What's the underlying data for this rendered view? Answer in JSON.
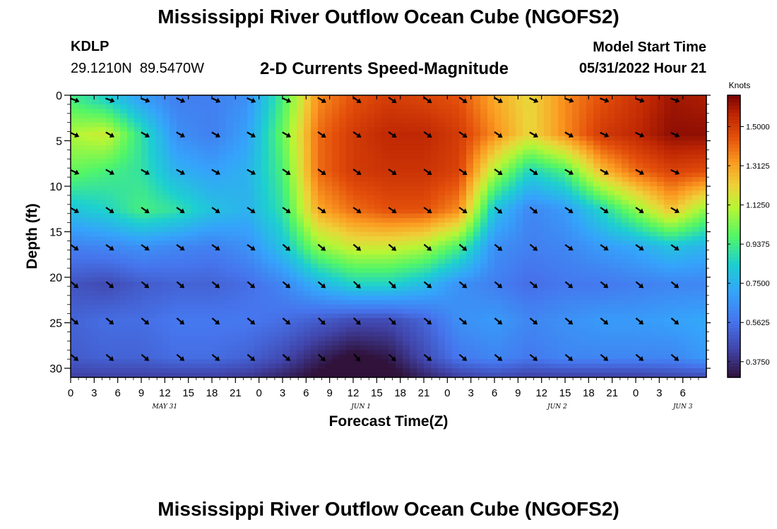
{
  "header": {
    "title": "Mississippi River Outflow Ocean Cube (NGOFS2)",
    "station_id": "KDLP",
    "station_coords": "29.1210N  89.5470W",
    "subtitle": "2-D Currents Speed-Magnitude",
    "model_start_label": "Model Start Time",
    "model_start_value": "05/31/2022 Hour 21"
  },
  "footer": {
    "title": "Mississippi River Outflow Ocean Cube (NGOFS2)"
  },
  "chart_data": {
    "type": "heatmap",
    "title": "2-D Currents Speed-Magnitude",
    "xlabel": "Forecast Time(Z)",
    "ylabel": "Depth (ft)",
    "x_range_hours": [
      0,
      81
    ],
    "y_range_ft": [
      0,
      31
    ],
    "y_inverted": true,
    "x_tick_labels": [
      "0",
      "3",
      "6",
      "9",
      "12",
      "15",
      "18",
      "21",
      "0",
      "3",
      "6",
      "9",
      "12",
      "15",
      "18",
      "21",
      "0",
      "3",
      "6",
      "9",
      "12",
      "15",
      "18",
      "21",
      "0",
      "3",
      "6"
    ],
    "y_ticks": [
      0,
      5,
      10,
      15,
      20,
      25,
      30
    ],
    "date_labels": [
      {
        "label": "MAY 31",
        "hour": 12
      },
      {
        "label": "JUN 1",
        "hour": 37
      },
      {
        "label": "JUN 2",
        "hour": 62
      },
      {
        "label": "JUN 3",
        "hour": 78
      }
    ],
    "colorbar": {
      "title": "Knots",
      "ticks": [
        1.5,
        1.3125,
        1.125,
        0.9375,
        0.75,
        0.5625,
        0.375
      ],
      "tick_labels": [
        "1.5000",
        "1.3125",
        "1.1250",
        "0.9375",
        "0.7500",
        "0.5625",
        "0.3750"
      ],
      "range": [
        0.3,
        1.65
      ]
    },
    "grid": false,
    "legend": "right",
    "depths_ft": [
      0.5,
      4.3,
      8.4,
      12.6,
      16.7,
      20.8,
      24.8,
      28.8,
      31.0
    ],
    "times_h": [
      0,
      4.5,
      9,
      13.5,
      18,
      22.5,
      27,
      31.5,
      36,
      40.5,
      45,
      49.5,
      54,
      58.5,
      63,
      67.5,
      72,
      76.5,
      81
    ],
    "speed_knots": [
      [
        0.95,
        0.85,
        0.7,
        0.6,
        0.6,
        0.65,
        0.95,
        1.35,
        1.45,
        1.5,
        1.48,
        1.45,
        1.3,
        1.2,
        1.35,
        1.45,
        1.52,
        1.6,
        1.58
      ],
      [
        1.1,
        1.15,
        0.9,
        0.65,
        0.6,
        0.7,
        1.0,
        1.4,
        1.5,
        1.55,
        1.55,
        1.5,
        1.35,
        1.2,
        1.35,
        1.5,
        1.55,
        1.62,
        1.62
      ],
      [
        1.0,
        0.95,
        0.9,
        0.75,
        0.7,
        0.75,
        0.95,
        1.4,
        1.5,
        1.52,
        1.52,
        1.48,
        1.1,
        0.85,
        0.95,
        1.25,
        1.4,
        1.48,
        1.45
      ],
      [
        0.8,
        0.85,
        0.95,
        0.9,
        0.8,
        0.75,
        0.9,
        1.3,
        1.4,
        1.45,
        1.45,
        1.35,
        0.8,
        0.62,
        0.68,
        0.85,
        1.05,
        1.25,
        1.05
      ],
      [
        0.6,
        0.62,
        0.65,
        0.62,
        0.6,
        0.65,
        0.8,
        1.05,
        1.15,
        1.15,
        1.1,
        0.95,
        0.65,
        0.6,
        0.62,
        0.68,
        0.72,
        0.8,
        0.75
      ],
      [
        0.48,
        0.45,
        0.5,
        0.52,
        0.52,
        0.55,
        0.62,
        0.75,
        0.85,
        0.85,
        0.78,
        0.65,
        0.6,
        0.55,
        0.58,
        0.58,
        0.6,
        0.62,
        0.62
      ],
      [
        0.52,
        0.55,
        0.55,
        0.58,
        0.58,
        0.58,
        0.55,
        0.5,
        0.45,
        0.45,
        0.52,
        0.65,
        0.68,
        0.62,
        0.65,
        0.68,
        0.68,
        0.7,
        0.72
      ],
      [
        0.5,
        0.52,
        0.52,
        0.55,
        0.55,
        0.52,
        0.45,
        0.35,
        0.28,
        0.32,
        0.45,
        0.58,
        0.62,
        0.58,
        0.62,
        0.62,
        0.62,
        0.62,
        0.68
      ],
      [
        0.42,
        0.42,
        0.42,
        0.42,
        0.42,
        0.4,
        0.35,
        0.28,
        0.22,
        0.26,
        0.35,
        0.42,
        0.45,
        0.42,
        0.42,
        0.42,
        0.42,
        0.44,
        0.45
      ]
    ],
    "arrow_depths_ft": [
      0.5,
      4.3,
      8.4,
      12.6,
      16.7,
      20.8,
      24.8,
      28.8
    ],
    "arrow_times_h": [
      0,
      4.5,
      9,
      13.5,
      18,
      22.5,
      27,
      31.5,
      36,
      40.5,
      45,
      49.5,
      54,
      58.5,
      63,
      67.5,
      72,
      76.5
    ],
    "arrow_direction_deg": [
      [
        110,
        110,
        110,
        115,
        115,
        115,
        115,
        120,
        125,
        125,
        125,
        125,
        120,
        115,
        110,
        110,
        110,
        110
      ],
      [
        115,
        120,
        120,
        120,
        120,
        120,
        120,
        125,
        125,
        125,
        125,
        125,
        125,
        120,
        120,
        115,
        115,
        115
      ],
      [
        115,
        120,
        120,
        120,
        120,
        120,
        125,
        125,
        125,
        125,
        125,
        125,
        125,
        125,
        120,
        120,
        120,
        115
      ],
      [
        120,
        125,
        125,
        125,
        125,
        125,
        125,
        125,
        125,
        125,
        125,
        125,
        130,
        130,
        125,
        125,
        125,
        120
      ],
      [
        125,
        125,
        125,
        125,
        125,
        125,
        130,
        130,
        130,
        130,
        130,
        130,
        130,
        130,
        125,
        125,
        125,
        125
      ],
      [
        130,
        130,
        130,
        130,
        130,
        130,
        130,
        130,
        135,
        135,
        130,
        130,
        130,
        130,
        130,
        130,
        130,
        130
      ],
      [
        130,
        130,
        130,
        130,
        130,
        130,
        130,
        135,
        135,
        135,
        130,
        130,
        130,
        130,
        130,
        130,
        130,
        130
      ],
      [
        130,
        130,
        130,
        130,
        130,
        130,
        130,
        135,
        140,
        135,
        130,
        130,
        130,
        130,
        130,
        130,
        130,
        130
      ]
    ]
  }
}
